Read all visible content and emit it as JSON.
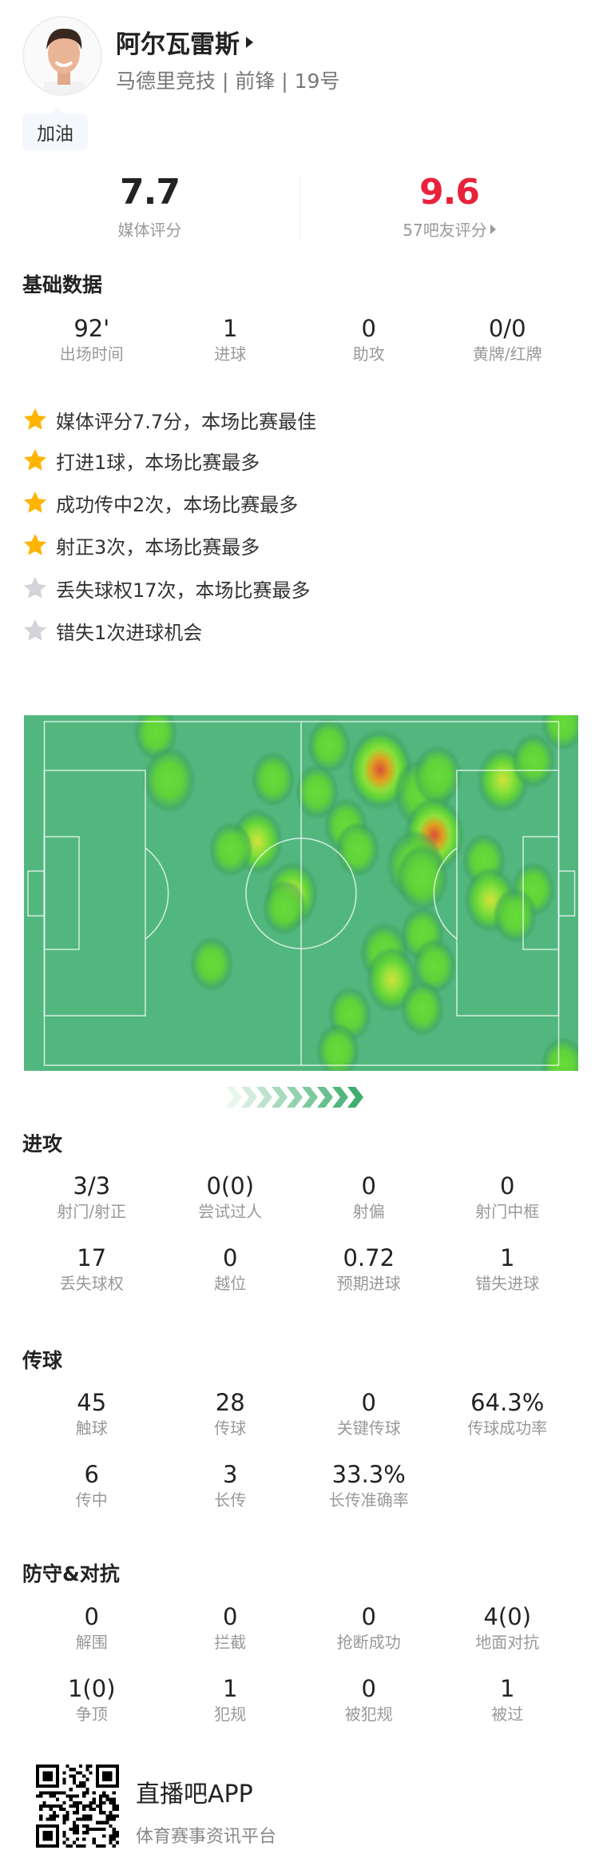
{
  "player": {
    "name": "阿尔瓦雷斯",
    "subtitle": "马德里竞技 | 前锋 | 19号",
    "cheer_label": "加油"
  },
  "ratings": {
    "media": {
      "value": "7.7",
      "label": "媒体评分"
    },
    "fans": {
      "value": "9.6",
      "label": "57吧友评分",
      "color": "#e8223a"
    }
  },
  "basic": {
    "title": "基础数据",
    "stats": [
      {
        "value": "92'",
        "label": "出场时间"
      },
      {
        "value": "1",
        "label": "进球"
      },
      {
        "value": "0",
        "label": "助攻"
      },
      {
        "value": "0/0",
        "label": "黄牌/红牌"
      }
    ]
  },
  "highlights": [
    {
      "text": "媒体评分7.7分，本场比赛最佳",
      "star": "gold"
    },
    {
      "text": "打进1球，本场比赛最多",
      "star": "gold"
    },
    {
      "text": "成功传中2次，本场比赛最多",
      "star": "gold"
    },
    {
      "text": "射正3次，本场比赛最多",
      "star": "gold"
    },
    {
      "text": "丢失球权17次，本场比赛最多",
      "star": "gray"
    },
    {
      "text": "错失1次进球机会",
      "star": "gray"
    }
  ],
  "attack": {
    "title": "进攻",
    "stats": [
      {
        "value": "3/3",
        "label": "射门/射正"
      },
      {
        "value": "0(0)",
        "label": "尝试过人"
      },
      {
        "value": "0",
        "label": "射偏"
      },
      {
        "value": "0",
        "label": "射门中框"
      },
      {
        "value": "17",
        "label": "丢失球权"
      },
      {
        "value": "0",
        "label": "越位"
      },
      {
        "value": "0.72",
        "label": "预期进球"
      },
      {
        "value": "1",
        "label": "错失进球"
      }
    ]
  },
  "passing": {
    "title": "传球",
    "stats": [
      {
        "value": "45",
        "label": "触球"
      },
      {
        "value": "28",
        "label": "传球"
      },
      {
        "value": "0",
        "label": "关键传球"
      },
      {
        "value": "64.3%",
        "label": "传球成功率"
      },
      {
        "value": "6",
        "label": "传中"
      },
      {
        "value": "3",
        "label": "长传"
      },
      {
        "value": "33.3%",
        "label": "长传准确率"
      }
    ]
  },
  "defense": {
    "title": "防守&对抗",
    "stats": [
      {
        "value": "0",
        "label": "解围"
      },
      {
        "value": "0",
        "label": "拦截"
      },
      {
        "value": "0",
        "label": "抢断成功"
      },
      {
        "value": "4(0)",
        "label": "地面对抗"
      },
      {
        "value": "1(0)",
        "label": "争顶"
      },
      {
        "value": "1",
        "label": "犯规"
      },
      {
        "value": "0",
        "label": "被犯规"
      },
      {
        "value": "1",
        "label": "被过"
      }
    ]
  },
  "footer": {
    "app_name": "直播吧APP",
    "tagline": "体育赛事资讯平台"
  },
  "colors": {
    "pitch": "#52b77e",
    "star_gold": "#ffb400",
    "star_gray": "#d3d3da",
    "fan_rating": "#e8223a"
  }
}
